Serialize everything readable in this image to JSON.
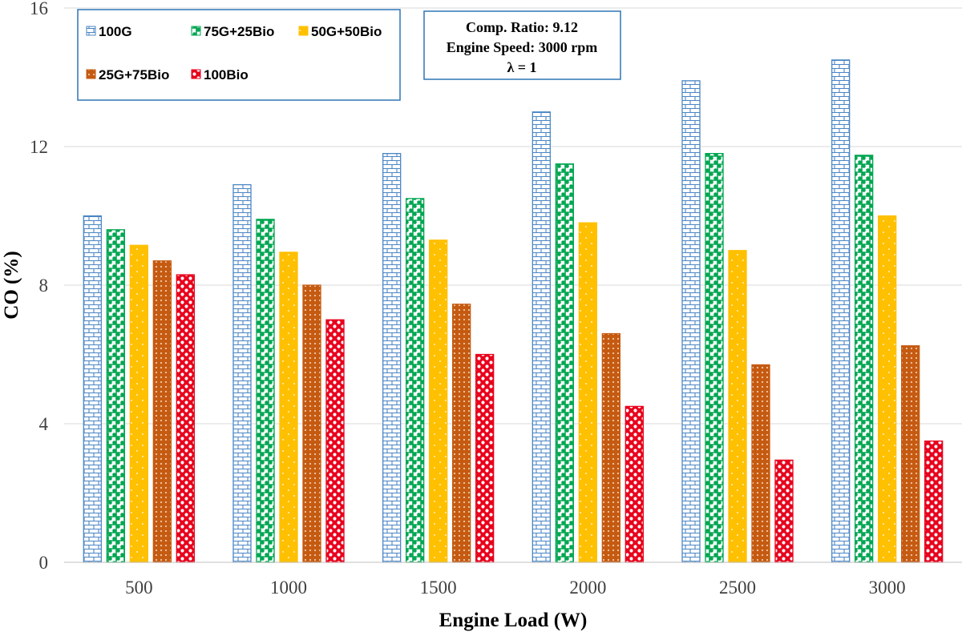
{
  "chart_data": {
    "type": "bar",
    "title": "",
    "xlabel": "Engine Load (W)",
    "ylabel": "CO (%)",
    "ylim": [
      0,
      16
    ],
    "yticks": [
      "0",
      "4",
      "8",
      "12",
      "16"
    ],
    "grid": true,
    "legend_position": "top-left",
    "categories": [
      "500",
      "1000",
      "1500",
      "2000",
      "2500",
      "3000"
    ],
    "series": [
      {
        "name": "100G",
        "color": "#4A86C5",
        "pattern": "brick",
        "values": [
          10.0,
          10.9,
          11.8,
          13.0,
          13.9,
          14.5
        ]
      },
      {
        "name": "75G+25Bio",
        "color": "#00A651",
        "pattern": "dots",
        "values": [
          9.6,
          9.9,
          10.5,
          11.5,
          11.8,
          11.75
        ]
      },
      {
        "name": "50G+50Bio",
        "color": "#FFC000",
        "pattern": "sparse-dots",
        "values": [
          9.15,
          8.95,
          9.3,
          9.8,
          9.0,
          10.0
        ]
      },
      {
        "name": "25G+75Bio",
        "color": "#C55A11",
        "pattern": "grid",
        "values": [
          8.7,
          8.0,
          7.45,
          6.6,
          5.7,
          6.25
        ]
      },
      {
        "name": "100Bio",
        "color": "#E8001C",
        "pattern": "circles",
        "values": [
          8.3,
          7.0,
          6.0,
          4.5,
          2.95,
          3.5
        ]
      }
    ],
    "annotation": [
      "Comp. Ratio: 9.12",
      "Engine Speed: 3000 rpm",
      "λ = 1"
    ]
  }
}
